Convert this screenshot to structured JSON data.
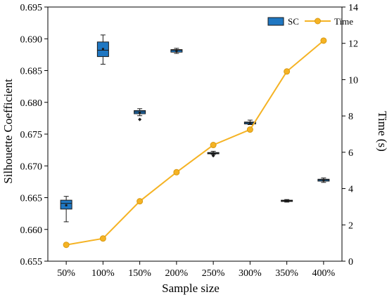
{
  "chart_data": {
    "type": "box+line",
    "xlabel": "Sample size",
    "ylabel_left": "Silhouette Coefficient",
    "ylabel_right": "Time (s)",
    "categories": [
      "50%",
      "100%",
      "150%",
      "200%",
      "250%",
      "300%",
      "350%",
      "400%"
    ],
    "y_left_range": [
      0.655,
      0.695
    ],
    "y_left_ticks": [
      "0.655",
      "0.660",
      "0.665",
      "0.670",
      "0.675",
      "0.680",
      "0.685",
      "0.690",
      "0.695"
    ],
    "y_right_range": [
      0,
      14
    ],
    "y_right_ticks": [
      "0",
      "2",
      "4",
      "6",
      "8",
      "10",
      "12",
      "14"
    ],
    "grid": false,
    "legend_position": "top-right",
    "colors": {
      "box_fill": "#1f77c2",
      "box_edge": "#1a1a1a",
      "line": "#f5b324",
      "marker_edge": "#d99a12"
    },
    "series": [
      {
        "name": "SC",
        "kind": "box",
        "boxes": [
          {
            "whislo": 0.6612,
            "q1": 0.6632,
            "med": 0.6641,
            "q3": 0.6646,
            "whishi": 0.6652,
            "mean": 0.6638,
            "fliers": []
          },
          {
            "whislo": 0.686,
            "q1": 0.6872,
            "med": 0.6882,
            "q3": 0.6895,
            "whishi": 0.6906,
            "mean": 0.6884,
            "fliers": []
          },
          {
            "whislo": 0.6779,
            "q1": 0.6782,
            "med": 0.6785,
            "q3": 0.6787,
            "whishi": 0.679,
            "mean": 0.6784,
            "fliers": [
              0.6773
            ]
          },
          {
            "whislo": 0.6877,
            "q1": 0.6879,
            "med": 0.6882,
            "q3": 0.6883,
            "whishi": 0.6885,
            "mean": 0.6881,
            "fliers": []
          },
          {
            "whislo": 0.6718,
            "q1": 0.6719,
            "med": 0.672,
            "q3": 0.6721,
            "whishi": 0.6723,
            "mean": 0.672,
            "fliers": [
              0.6716
            ]
          },
          {
            "whislo": 0.6765,
            "q1": 0.6766,
            "med": 0.6768,
            "q3": 0.6769,
            "whishi": 0.6772,
            "mean": 0.6767,
            "fliers": []
          },
          {
            "whislo": 0.6643,
            "q1": 0.6644,
            "med": 0.6645,
            "q3": 0.6646,
            "whishi": 0.6647,
            "mean": 0.6645,
            "fliers": []
          },
          {
            "whislo": 0.6674,
            "q1": 0.6676,
            "med": 0.6678,
            "q3": 0.6679,
            "whishi": 0.6681,
            "mean": 0.6677,
            "fliers": []
          }
        ]
      },
      {
        "name": "Time",
        "kind": "line",
        "axis": "right",
        "values": [
          0.9,
          1.25,
          3.3,
          4.9,
          6.4,
          7.25,
          10.45,
          12.15
        ]
      }
    ]
  }
}
